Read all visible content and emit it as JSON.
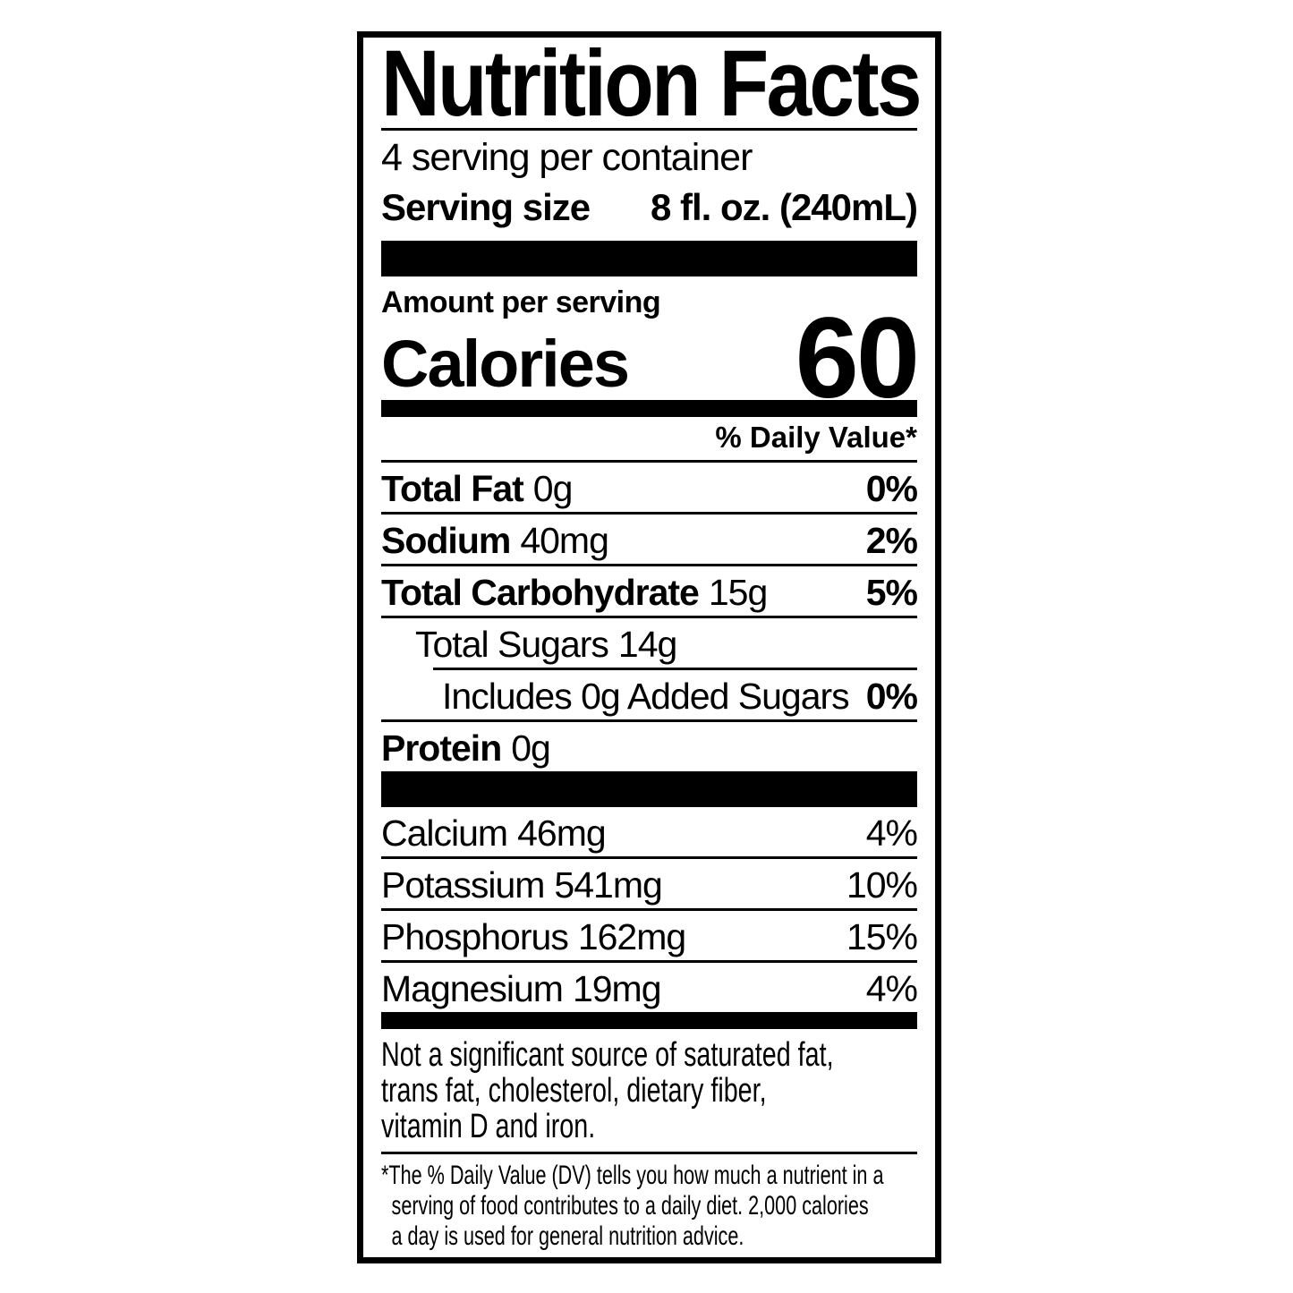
{
  "nutrition_label": {
    "title": "Nutrition Facts",
    "servings_per_container": "4 serving per container",
    "serving_size": {
      "label": "Serving size",
      "value": "8 fl. oz. (240mL)"
    },
    "amount_per_serving_label": "Amount per serving",
    "calories": {
      "label": "Calories",
      "value": "60"
    },
    "daily_value_header": "% Daily Value*",
    "nutrients": [
      {
        "name": "Total Fat",
        "amount": "0g",
        "daily_value": "0%"
      },
      {
        "name": "Sodium",
        "amount": "40mg",
        "daily_value": "2%"
      },
      {
        "name": "Total Carbohydrate",
        "amount": "15g",
        "daily_value": "5%"
      },
      {
        "name": "Total Sugars",
        "amount": "14g",
        "daily_value": ""
      },
      {
        "name": "Includes 0g Added Sugars",
        "amount": "",
        "daily_value": "0%"
      },
      {
        "name": "Protein",
        "amount": "0g",
        "daily_value": ""
      }
    ],
    "minerals": [
      {
        "name": "Calcium",
        "amount": "46mg",
        "daily_value": "4%"
      },
      {
        "name": "Potassium",
        "amount": "541mg",
        "daily_value": "10%"
      },
      {
        "name": "Phosphorus",
        "amount": "162mg",
        "daily_value": "15%"
      },
      {
        "name": "Magnesium",
        "amount": "19mg",
        "daily_value": "4%"
      }
    ],
    "not_significant_lines": [
      "Not a significant source of saturated fat,",
      "trans fat, cholesterol, dietary fiber,",
      "vitamin D and iron."
    ],
    "footnote_lines": [
      "*The % Daily Value (DV) tells you how much a nutrient in a",
      "serving of food contributes to a daily diet. 2,000 calories",
      "a day is used for general nutrition advice."
    ],
    "colors": {
      "ink": "#000000",
      "paper": "#ffffff"
    }
  }
}
